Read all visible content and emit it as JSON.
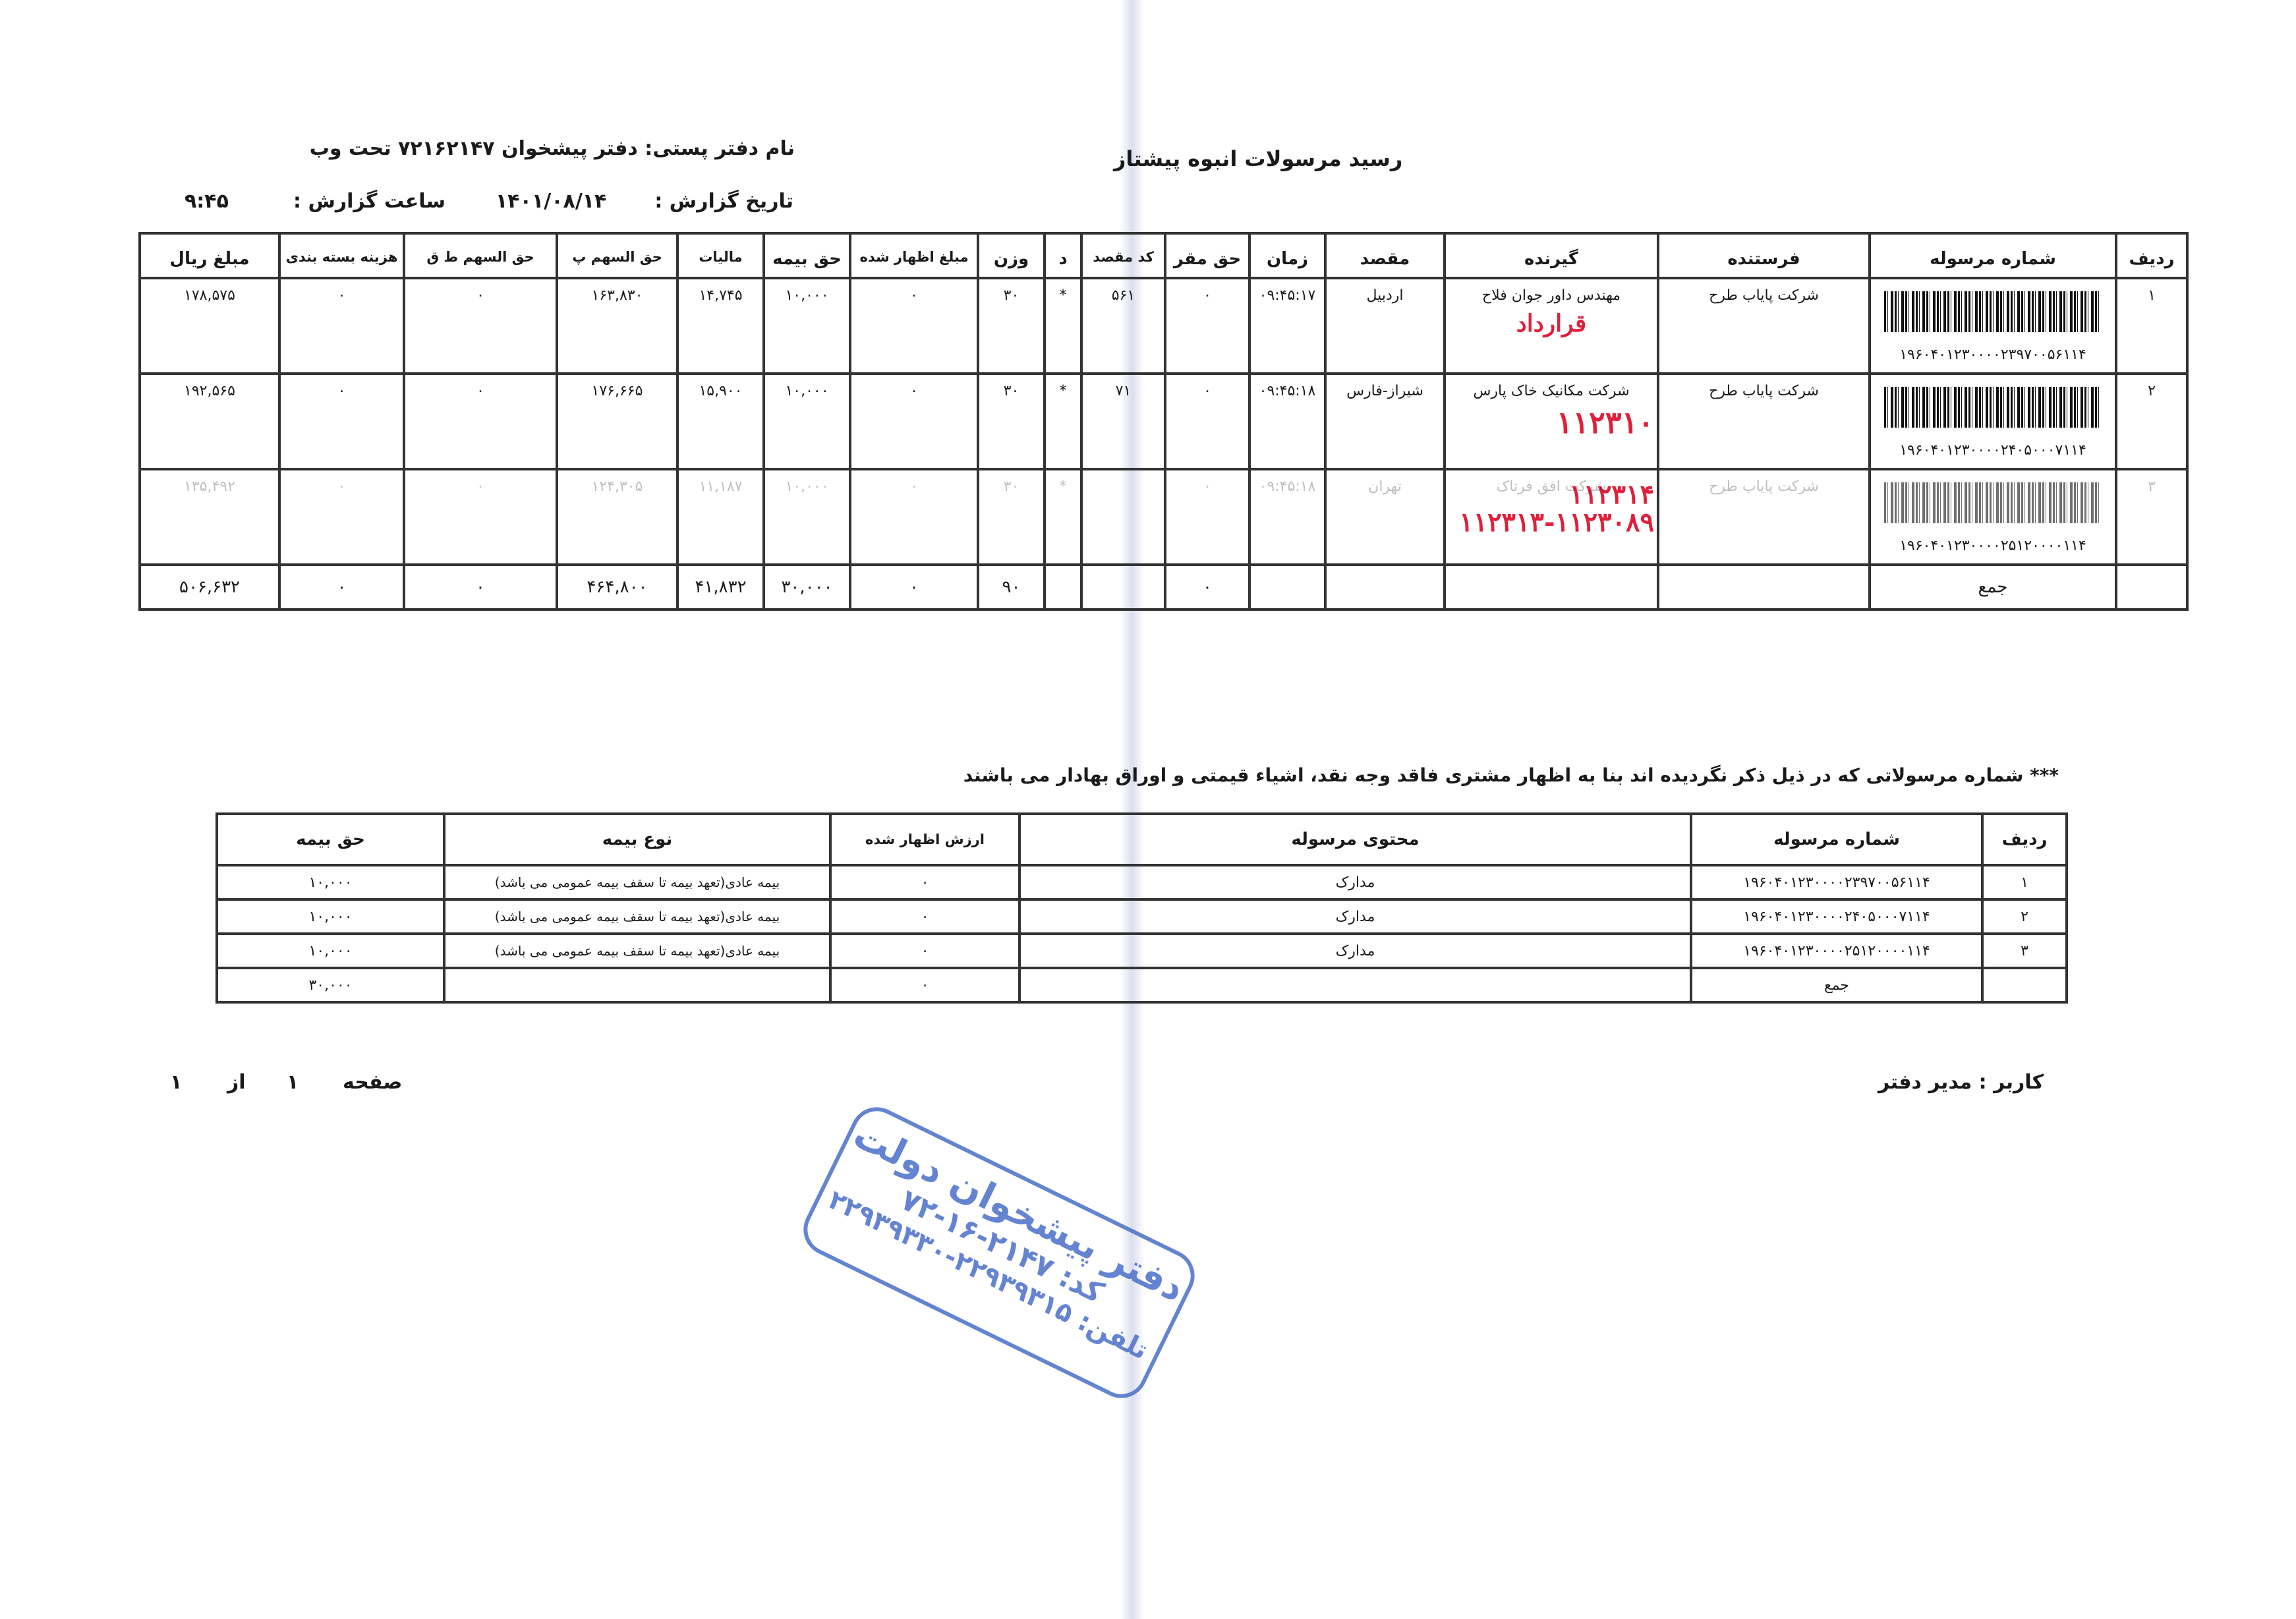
{
  "header": {
    "title": "رسید مرسولات انبوه  پیشتاز",
    "office_label": "نام دفتر پستی:",
    "office_name": "دفتر پیشخوان ۷۲۱۶۲۱۴۷ تحت وب",
    "date_label": "تاریخ گزارش :",
    "date": "۱۴۰۱/۰۸/۱۴",
    "time_label": "ساعت گزارش :",
    "time": "۹:۴۵"
  },
  "table1": {
    "columns": [
      "ردیف",
      "شماره مرسوله",
      "فرستنده",
      "گیرنده",
      "مقصد",
      "زمان",
      "حق مقر",
      "کد مقصد",
      "د",
      "وزن",
      "مبلغ اظهار شده",
      "حق بیمه",
      "مالیات",
      "حق السهم پ",
      "حق السهم ط ق",
      "هزینه بسته بندی",
      "مبلغ ریال"
    ],
    "rows": [
      {
        "row": "۱",
        "number": "۱۹۶۰۴۰۱۲۳۰۰۰۰۲۳۹۷۰۰۵۶۱۱۴",
        "sender": "شرکت پایاب طرح",
        "receiver": "مهندس داور جوان فلاح",
        "note": "قرارداد",
        "dest": "اردبیل",
        "time": "۰۹:۴۵:۱۷",
        "haq_maqar": "۰",
        "dest_code": "۵۶۱",
        "d": "*",
        "weight": "۳۰",
        "declared": "۰",
        "insurance": "۱۰,۰۰۰",
        "tax": "۱۴,۷۴۵",
        "share_p": "۱۶۳,۸۳۰",
        "share_tq": "۰",
        "packing": "۰",
        "amount": "۱۷۸,۵۷۵"
      },
      {
        "row": "۲",
        "number": "۱۹۶۰۴۰۱۲۳۰۰۰۰۲۴۰۵۰۰۰۷۱۱۴",
        "sender": "شرکت پایاب طرح",
        "receiver": "شرکت مکانیک خاک پارس",
        "note": "۱۱۲۳۱۰",
        "dest": "شیراز-فارس",
        "time": "۰۹:۴۵:۱۸",
        "haq_maqar": "۰",
        "dest_code": "۷۱",
        "d": "*",
        "weight": "۳۰",
        "declared": "۰",
        "insurance": "۱۰,۰۰۰",
        "tax": "۱۵,۹۰۰",
        "share_p": "۱۷۶,۶۶۵",
        "share_tq": "۰",
        "packing": "۰",
        "amount": "۱۹۲,۵۶۵"
      },
      {
        "row": "۳",
        "number": "۱۹۶۰۴۰۱۲۳۰۰۰۰۲۵۱۲۰۰۰۰۱۱۴",
        "sender": "شرکت پایاب طرح",
        "receiver": "شرکت افق فرتاک",
        "note": "۱۱۲۳۱۴",
        "note2": "۱۱۲۳۱۳-۱۱۲۳۰۸۹",
        "dest": "تهران",
        "time": "۰۹:۴۵:۱۸",
        "haq_maqar": "۰",
        "dest_code": "",
        "d": "*",
        "weight": "۳۰",
        "declared": "۰",
        "insurance": "۱۰,۰۰۰",
        "tax": "۱۱,۱۸۷",
        "share_p": "۱۲۴,۳۰۵",
        "share_tq": "۰",
        "packing": "۰",
        "amount": "۱۳۵,۴۹۲"
      }
    ],
    "total": {
      "label": "جمع",
      "haq_maqar": "۰",
      "weight": "۹۰",
      "declared": "۰",
      "insurance": "۳۰,۰۰۰",
      "tax": "۴۱,۸۳۲",
      "share_p": "۴۶۴,۸۰۰",
      "share_tq": "۰",
      "packing": "۰",
      "amount": "۵۰۶,۶۳۲"
    }
  },
  "notice": "*** شماره مرسولاتی که در ذیل ذکر نگردیده اند بنا به اظهار مشتری فاقد وجه نقد، اشیاء قیمتی و اوراق بهادار می باشند",
  "table2": {
    "columns": [
      "ردیف",
      "شماره مرسوله",
      "محتوی مرسوله",
      "",
      "ارزش اظهار شده",
      "نوع بیمه",
      "حق بیمه"
    ],
    "rows": [
      {
        "row": "۱",
        "number": "۱۹۶۰۴۰۱۲۳۰۰۰۰۲۳۹۷۰۰۵۶۱۱۴",
        "content": "مدارک",
        "declared": "۰",
        "type": "بیمه عادی(تعهد بیمه تا سقف بیمه عمومی می باشد)",
        "insurance": "۱۰,۰۰۰"
      },
      {
        "row": "۲",
        "number": "۱۹۶۰۴۰۱۲۳۰۰۰۰۲۴۰۵۰۰۰۷۱۱۴",
        "content": "مدارک",
        "declared": "۰",
        "type": "بیمه عادی(تعهد بیمه تا سقف بیمه عمومی می باشد)",
        "insurance": "۱۰,۰۰۰"
      },
      {
        "row": "۳",
        "number": "۱۹۶۰۴۰۱۲۳۰۰۰۰۲۵۱۲۰۰۰۰۱۱۴",
        "content": "مدارک",
        "declared": "۰",
        "type": "بیمه عادی(تعهد بیمه تا سقف بیمه عمومی می باشد)",
        "insurance": "۱۰,۰۰۰"
      }
    ],
    "total": {
      "label": "جمع",
      "declared": "۰",
      "insurance": "۳۰,۰۰۰"
    }
  },
  "footer": {
    "user": "کاربر : مدیر دفتر",
    "page_label": "صفحه",
    "page": "۱",
    "of_label": "از",
    "pages": "۱"
  },
  "stamp": {
    "line1": "دفتر پیشخوان دولت",
    "line2": "کد: ۲۱۴۷-۱۶-۷۲",
    "line3": "تلفن: ۲۲۹۳۹۳۱۵-۲۲۹۳۹۳۳۰"
  },
  "colors": {
    "ink": "#1a1a1a",
    "handwriting": "#e0203a",
    "stamp": "#4a6fc9"
  }
}
